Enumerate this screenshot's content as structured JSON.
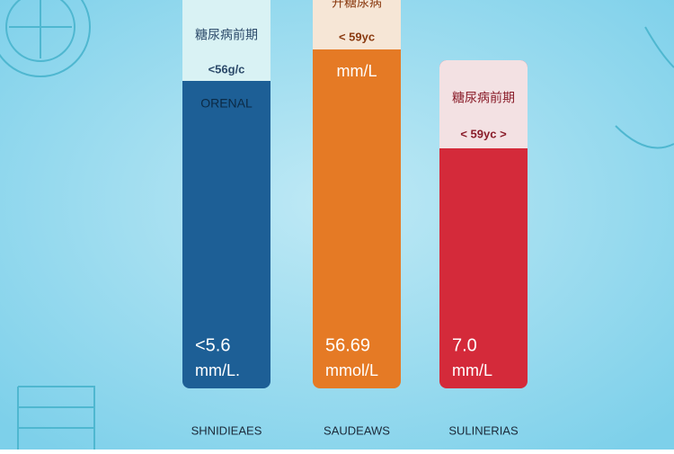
{
  "panels": [
    {
      "header": "糖尿病前期",
      "range": "<56g/c",
      "caption": "ORENAL",
      "value": "<5.6",
      "unit": "mm/L.",
      "label": "SHNIDIEAES"
    },
    {
      "header": "开糖尿病",
      "range": "< 59yc",
      "caption": "mm/L",
      "value": "56.69",
      "unit": "mmol/L",
      "label": "SAUDEAWS"
    },
    {
      "header": "糖尿病前期",
      "range": "< 59yc >",
      "caption": "",
      "value": "7.0",
      "unit": "mm/L",
      "label": "SULINERIAS"
    }
  ]
}
